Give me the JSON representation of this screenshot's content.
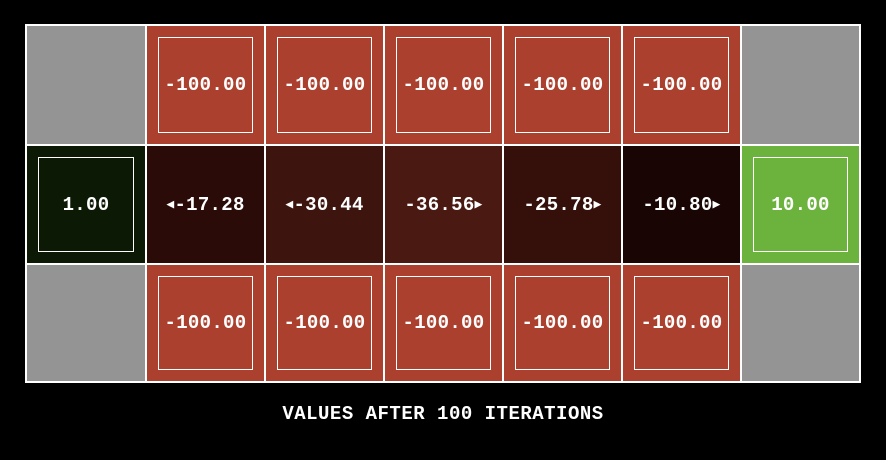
{
  "caption": "VALUES AFTER 100 ITERATIONS",
  "colors": {
    "wall": "#949494",
    "cliff": "#ab402e",
    "start": "#0c1a05",
    "goal": "#6cb33e",
    "grid_line": "#ffffff"
  },
  "rows": [
    [
      {
        "type": "wall"
      },
      {
        "type": "cliff",
        "value": "-100.00"
      },
      {
        "type": "cliff",
        "value": "-100.00"
      },
      {
        "type": "cliff",
        "value": "-100.00"
      },
      {
        "type": "cliff",
        "value": "-100.00"
      },
      {
        "type": "cliff",
        "value": "-100.00"
      },
      {
        "type": "wall"
      }
    ],
    [
      {
        "type": "exit",
        "value": "1.00",
        "color": "#0c1a05"
      },
      {
        "type": "state",
        "value": "-17.28",
        "arrow": "left",
        "color": "#2a0b08"
      },
      {
        "type": "state",
        "value": "-30.44",
        "arrow": "left",
        "color": "#3d140e"
      },
      {
        "type": "state",
        "value": "-36.56",
        "arrow": "right",
        "color": "#4a1a12"
      },
      {
        "type": "state",
        "value": "-25.78",
        "arrow": "right",
        "color": "#35100b"
      },
      {
        "type": "state",
        "value": "-10.80",
        "arrow": "right",
        "color": "#1a0505"
      },
      {
        "type": "exit",
        "value": "10.00",
        "color": "#6cb33e"
      }
    ],
    [
      {
        "type": "wall"
      },
      {
        "type": "cliff",
        "value": "-100.00"
      },
      {
        "type": "cliff",
        "value": "-100.00"
      },
      {
        "type": "cliff",
        "value": "-100.00"
      },
      {
        "type": "cliff",
        "value": "-100.00"
      },
      {
        "type": "cliff",
        "value": "-100.00"
      },
      {
        "type": "wall"
      }
    ]
  ]
}
